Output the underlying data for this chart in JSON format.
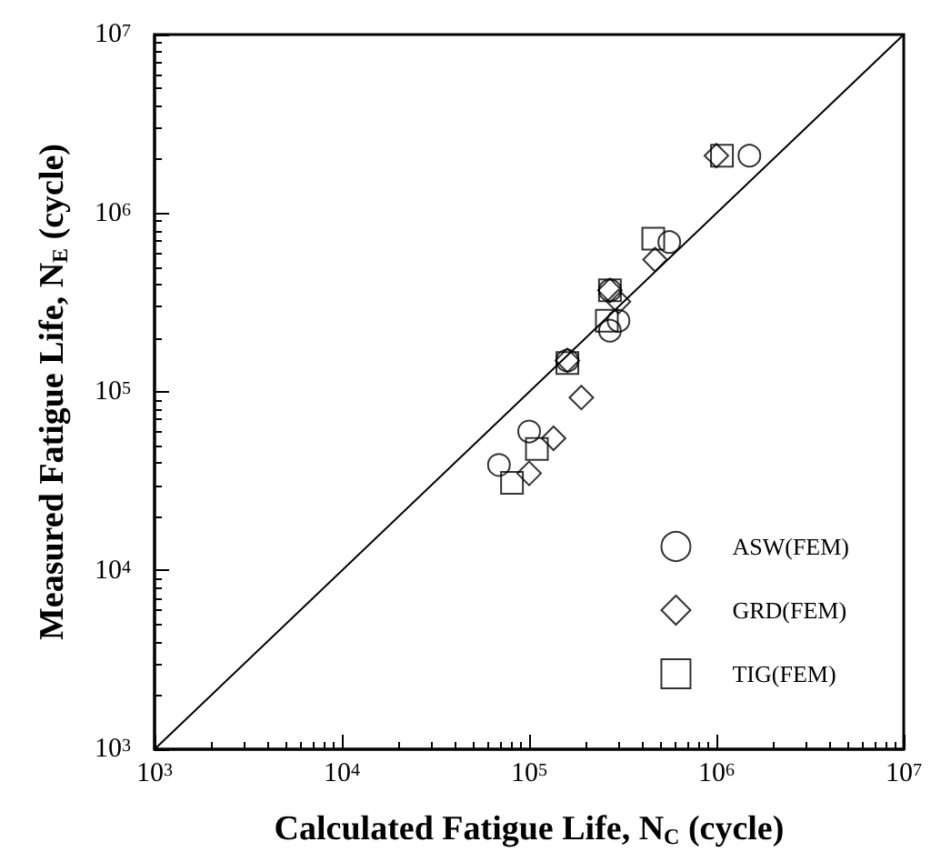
{
  "chart_data": {
    "type": "scatter",
    "xlabel": "Calculated Fatigue Life, N$_{C}$ (cycle)",
    "ylabel": "Measured Fatigue Life, N$_{E}$ (cycle)",
    "log": "xy",
    "xlim": [
      1000,
      10000000
    ],
    "ylim": [
      1000,
      10000000
    ],
    "xticks": [
      {
        "value": 1000,
        "label": "10$^{3}$"
      },
      {
        "value": 10000,
        "label": "10$^{4}$"
      },
      {
        "value": 100000,
        "label": "10$^{5}$"
      },
      {
        "value": 1000000,
        "label": "10$^{6}$"
      },
      {
        "value": 10000000,
        "label": "10$^{7}$"
      }
    ],
    "yticks": [
      {
        "value": 1000,
        "label": "10$^{3}$"
      },
      {
        "value": 10000,
        "label": "10$^{4}$"
      },
      {
        "value": 100000,
        "label": "10$^{5}$"
      },
      {
        "value": 1000000,
        "label": "10$^{6}$"
      },
      {
        "value": 10000000,
        "label": "10$^{7}$"
      }
    ],
    "grid": false,
    "legend": "bottom right",
    "series": [
      {
        "name": "ASW(FEM)",
        "marker": "circle",
        "color": "#000000",
        "x": [
          1500000,
          560000,
          300000,
          270000,
          270000,
          160000,
          100000,
          69000
        ],
        "values": [
          2100000,
          690000,
          250000,
          220000,
          370000,
          150000,
          60000,
          39000
        ]
      },
      {
        "name": "GRD(FEM)",
        "marker": "diamond",
        "color": "#000000",
        "x": [
          1000000,
          470000,
          300000,
          270000,
          160000,
          190000,
          135000,
          100000
        ],
        "values": [
          2100000,
          550000,
          320000,
          370000,
          150000,
          93000,
          55000,
          35000
        ]
      },
      {
        "name": "TIG(FEM)",
        "marker": "square",
        "color": "#000000",
        "x": [
          1070000,
          460000,
          260000,
          270000,
          160000,
          110000,
          81000
        ],
        "values": [
          2100000,
          720000,
          250000,
          370000,
          145000,
          48000,
          31000
        ]
      },
      {
        "type": "line",
        "marker": "none",
        "line_style": "solid",
        "color": "#000000",
        "x": [
          1000,
          10000000
        ],
        "values": [
          1000,
          10000000
        ]
      }
    ]
  }
}
